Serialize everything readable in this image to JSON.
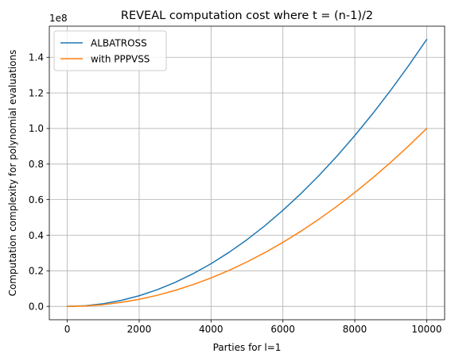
{
  "chart_data": {
    "type": "line",
    "title": "REVEAL computation cost where t = (n-1)/2",
    "xlabel": "Parties for l=1",
    "ylabel": "Computation complexity for polynomial evaluations",
    "y_offset_label": "1e8",
    "xlim": [
      -500,
      10500
    ],
    "ylim": [
      -0.075,
      1.575
    ],
    "x_ticks": [
      0,
      2000,
      4000,
      6000,
      8000,
      10000
    ],
    "x_tick_labels": [
      "0",
      "2000",
      "4000",
      "6000",
      "8000",
      "10000"
    ],
    "y_ticks": [
      0.0,
      0.2,
      0.4,
      0.6,
      0.8,
      1.0,
      1.2,
      1.4
    ],
    "y_tick_labels": [
      "0.0",
      "0.2",
      "0.4",
      "0.6",
      "0.8",
      "1.0",
      "1.2",
      "1.4"
    ],
    "grid": true,
    "legend_position": "top-left",
    "x": [
      0,
      500,
      1000,
      1500,
      2000,
      2500,
      3000,
      3500,
      4000,
      4500,
      5000,
      5500,
      6000,
      6500,
      7000,
      7500,
      8000,
      8500,
      9000,
      9500,
      10000
    ],
    "series": [
      {
        "name": "ALBATROSS",
        "color": "#1f77b4",
        "values": [
          0.0,
          0.00375,
          0.015,
          0.03375,
          0.06,
          0.09375,
          0.135,
          0.18375,
          0.24,
          0.30375,
          0.375,
          0.45375,
          0.54,
          0.63375,
          0.735,
          0.84375,
          0.96,
          1.08375,
          1.215,
          1.35375,
          1.5
        ]
      },
      {
        "name": "with PPPVSS",
        "color": "#ff7f0e",
        "values": [
          0.0,
          0.0025,
          0.01,
          0.0225,
          0.04,
          0.0625,
          0.09,
          0.1225,
          0.16,
          0.2025,
          0.25,
          0.3025,
          0.36,
          0.4225,
          0.49,
          0.5625,
          0.64,
          0.7225,
          0.81,
          0.9025,
          1.0
        ]
      }
    ]
  }
}
